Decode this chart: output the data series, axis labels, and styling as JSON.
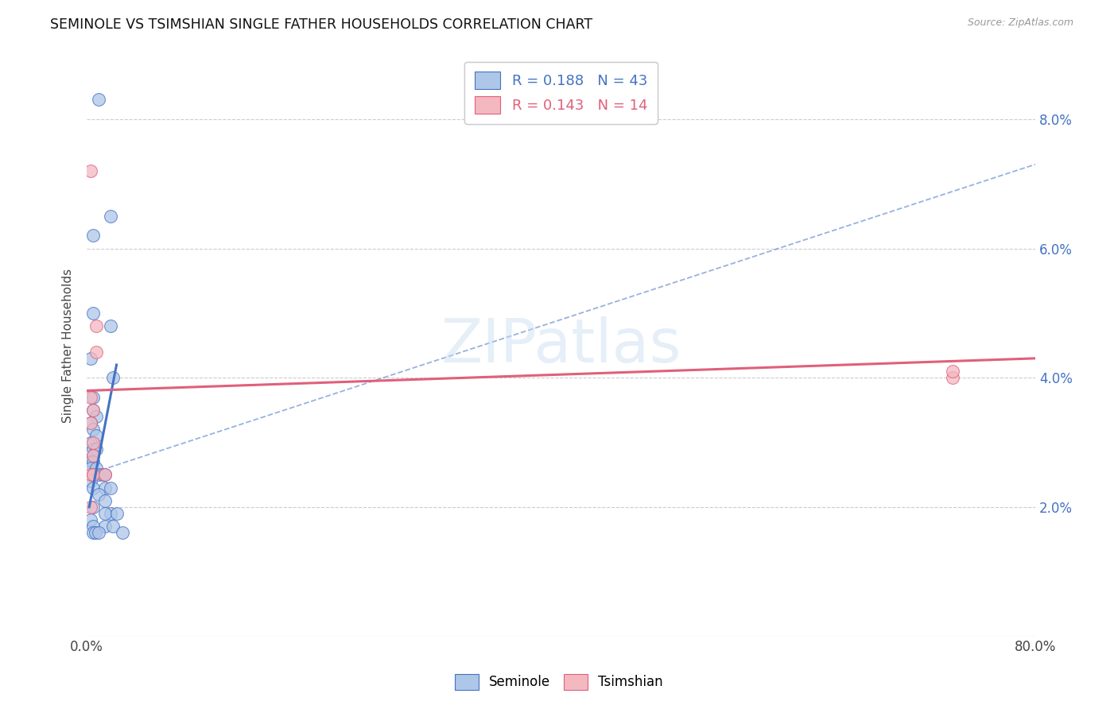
{
  "title": "SEMINOLE VS TSIMSHIAN SINGLE FATHER HOUSEHOLDS CORRELATION CHART",
  "source": "Source: ZipAtlas.com",
  "ylabel": "Single Father Households",
  "background_color": "#ffffff",
  "watermark": "ZIPatlas",
  "seminole_color": "#aec6e8",
  "tsimshian_color": "#f4b8c1",
  "seminole_line_color": "#4472c4",
  "tsimshian_line_color": "#e0607a",
  "seminole_R": "0.188",
  "seminole_N": "43",
  "tsimshian_R": "0.143",
  "tsimshian_N": "14",
  "xlim": [
    0.0,
    0.8
  ],
  "ylim": [
    0.0,
    0.09
  ],
  "yticks": [
    0.02,
    0.04,
    0.06,
    0.08
  ],
  "xtick_show": [
    0.0,
    0.8
  ],
  "xtick_minor": [
    0.1,
    0.2,
    0.3,
    0.4,
    0.5,
    0.6,
    0.7
  ],
  "seminole_scatter": [
    [
      0.01,
      0.083
    ],
    [
      0.005,
      0.062
    ],
    [
      0.02,
      0.065
    ],
    [
      0.005,
      0.05
    ],
    [
      0.02,
      0.048
    ],
    [
      0.003,
      0.043
    ],
    [
      0.005,
      0.037
    ],
    [
      0.005,
      0.035
    ],
    [
      0.008,
      0.034
    ],
    [
      0.003,
      0.033
    ],
    [
      0.005,
      0.032
    ],
    [
      0.008,
      0.031
    ],
    [
      0.003,
      0.03
    ],
    [
      0.005,
      0.029
    ],
    [
      0.008,
      0.029
    ],
    [
      0.005,
      0.028
    ],
    [
      0.003,
      0.027
    ],
    [
      0.005,
      0.027
    ],
    [
      0.003,
      0.026
    ],
    [
      0.008,
      0.026
    ],
    [
      0.005,
      0.025
    ],
    [
      0.01,
      0.025
    ],
    [
      0.013,
      0.025
    ],
    [
      0.015,
      0.025
    ],
    [
      0.003,
      0.024
    ],
    [
      0.005,
      0.023
    ],
    [
      0.015,
      0.023
    ],
    [
      0.02,
      0.023
    ],
    [
      0.01,
      0.022
    ],
    [
      0.015,
      0.021
    ],
    [
      0.005,
      0.02
    ],
    [
      0.02,
      0.019
    ],
    [
      0.015,
      0.019
    ],
    [
      0.025,
      0.019
    ],
    [
      0.003,
      0.018
    ],
    [
      0.005,
      0.017
    ],
    [
      0.015,
      0.017
    ],
    [
      0.022,
      0.017
    ],
    [
      0.005,
      0.016
    ],
    [
      0.007,
      0.016
    ],
    [
      0.01,
      0.016
    ],
    [
      0.03,
      0.016
    ],
    [
      0.022,
      0.04
    ]
  ],
  "tsimshian_scatter": [
    [
      0.003,
      0.072
    ],
    [
      0.008,
      0.048
    ],
    [
      0.008,
      0.044
    ],
    [
      0.003,
      0.037
    ],
    [
      0.005,
      0.035
    ],
    [
      0.003,
      0.033
    ],
    [
      0.005,
      0.03
    ],
    [
      0.005,
      0.028
    ],
    [
      0.003,
      0.025
    ],
    [
      0.005,
      0.025
    ],
    [
      0.015,
      0.025
    ],
    [
      0.003,
      0.02
    ],
    [
      0.73,
      0.04
    ],
    [
      0.73,
      0.041
    ]
  ],
  "seminole_solid_line": [
    [
      0.002,
      0.02
    ],
    [
      0.025,
      0.042
    ]
  ],
  "seminole_dashed_line": [
    [
      0.0,
      0.025
    ],
    [
      0.8,
      0.073
    ]
  ],
  "tsimshian_solid_line": [
    [
      0.0,
      0.038
    ],
    [
      0.8,
      0.043
    ]
  ]
}
